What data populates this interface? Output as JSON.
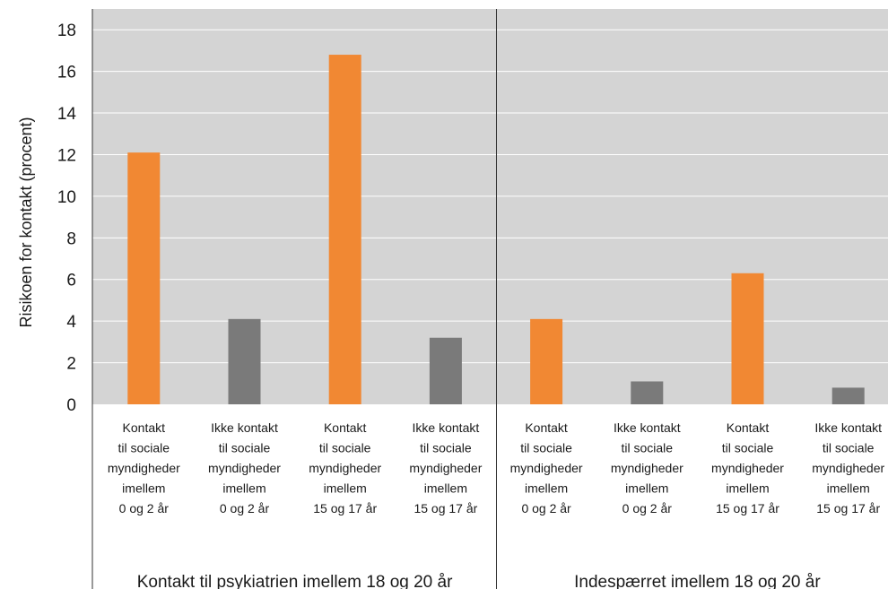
{
  "chart_data": {
    "type": "bar",
    "title": "",
    "xlabel": "",
    "ylabel": "Risikoen for kontakt (procent)",
    "ylim": [
      0,
      19
    ],
    "yticks": [
      0,
      2,
      4,
      6,
      8,
      10,
      12,
      14,
      16,
      18
    ],
    "grid": true,
    "colors": {
      "plot_background": "#d4d4d4",
      "grid": "#ffffff",
      "kontakt": "#f18833",
      "ikke_kontakt": "#7a7a7a"
    },
    "groups": [
      {
        "label": "Kontakt til psykiatrien imellem 18 og 20 år",
        "bars": [
          {
            "label": [
              "Kontakt",
              "til sociale",
              "myndigheder",
              "imellem",
              "0 og 2 år"
            ],
            "value": 12.1,
            "series": "kontakt"
          },
          {
            "label": [
              "Ikke kontakt",
              "til sociale",
              "myndigheder",
              "imellem",
              "0 og 2 år"
            ],
            "value": 4.1,
            "series": "ikke_kontakt"
          },
          {
            "label": [
              "Kontakt",
              "til sociale",
              "myndigheder",
              "imellem",
              "15 og 17 år"
            ],
            "value": 16.8,
            "series": "kontakt"
          },
          {
            "label": [
              "Ikke kontakt",
              "til sociale",
              "myndigheder",
              "imellem",
              "15 og 17 år"
            ],
            "value": 3.2,
            "series": "ikke_kontakt"
          }
        ]
      },
      {
        "label": "Indespærret imellem 18 og 20 år",
        "bars": [
          {
            "label": [
              "Kontakt",
              "til sociale",
              "myndigheder",
              "imellem",
              "0 og 2 år"
            ],
            "value": 4.1,
            "series": "kontakt"
          },
          {
            "label": [
              "Ikke kontakt",
              "til sociale",
              "myndigheder",
              "imellem",
              "0 og 2 år"
            ],
            "value": 1.1,
            "series": "ikke_kontakt"
          },
          {
            "label": [
              "Kontakt",
              "til sociale",
              "myndigheder",
              "imellem",
              "15 og 17 år"
            ],
            "value": 6.3,
            "series": "kontakt"
          },
          {
            "label": [
              "Ikke kontakt",
              "til sociale",
              "myndigheder",
              "imellem",
              "15 og 17 år"
            ],
            "value": 0.8,
            "series": "ikke_kontakt"
          }
        ]
      }
    ]
  }
}
